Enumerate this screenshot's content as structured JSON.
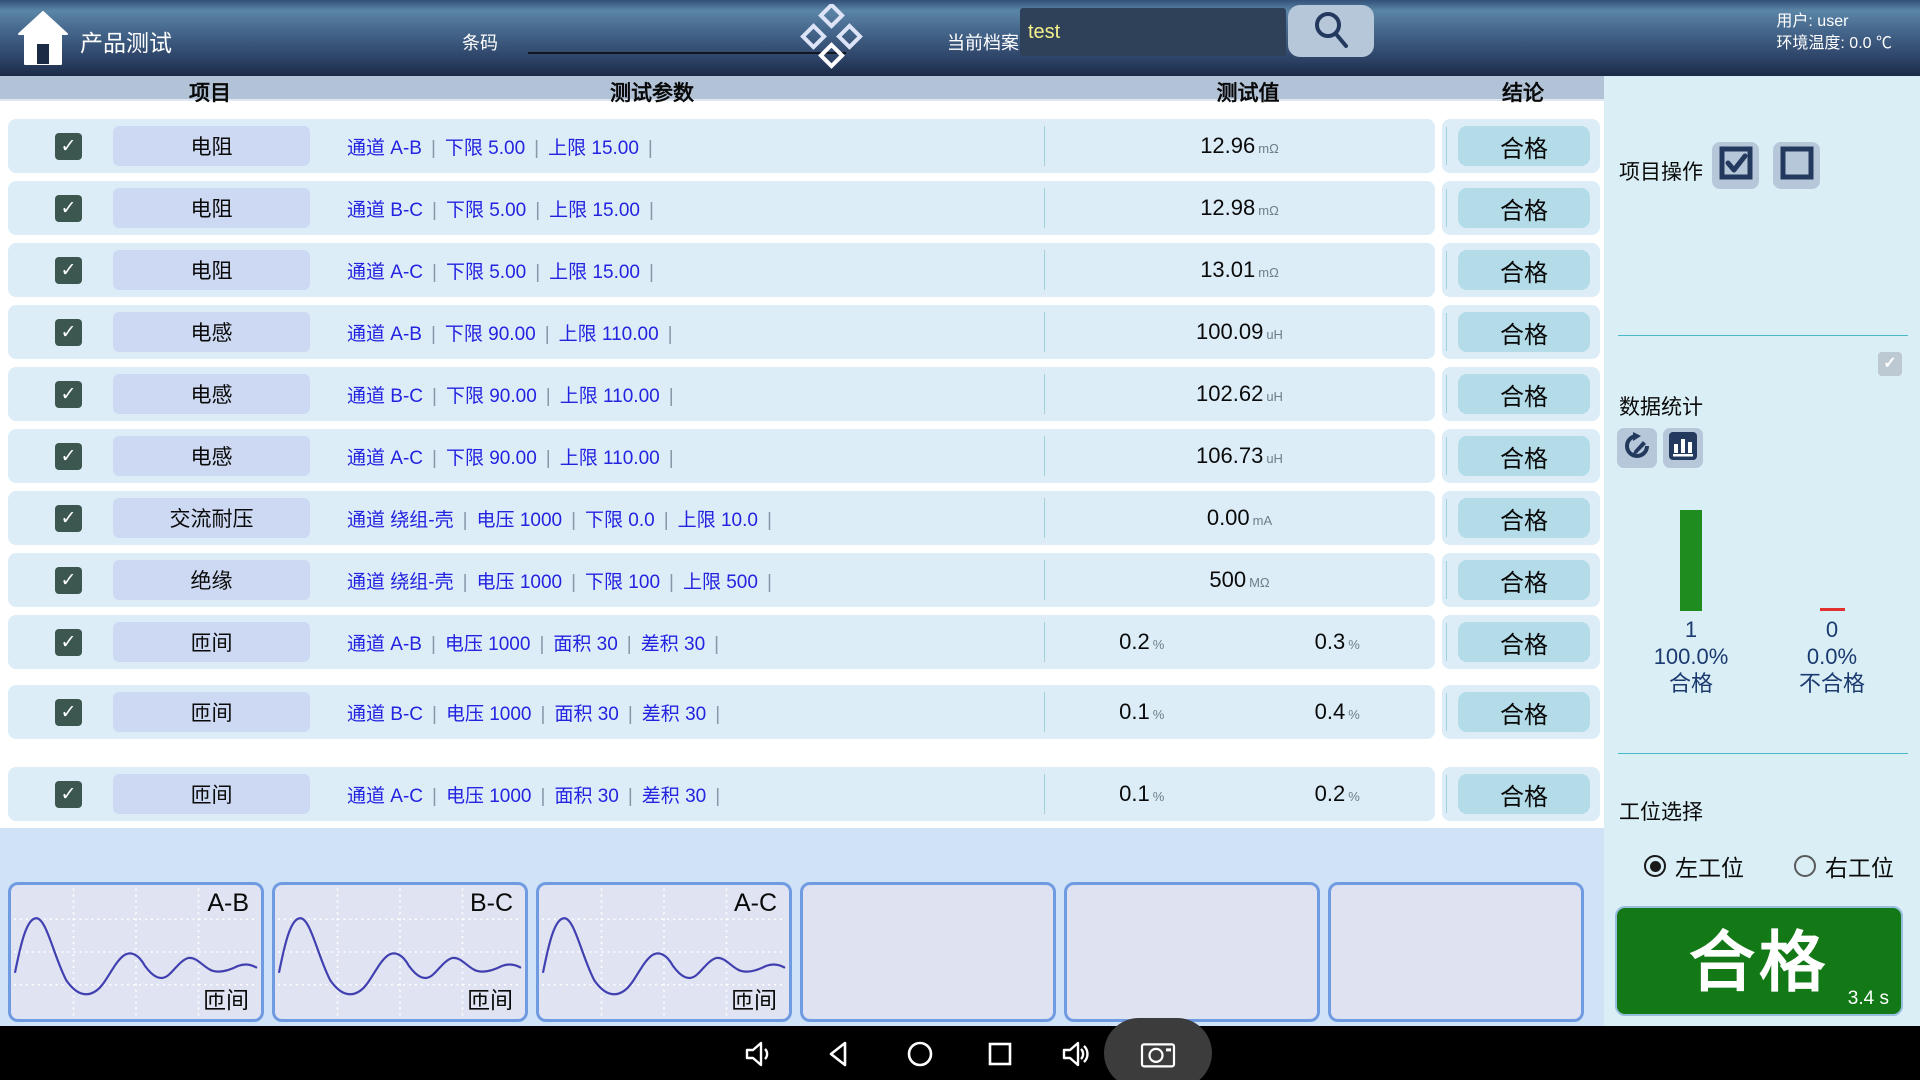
{
  "topbar": {
    "title": "产品测试",
    "barcode_label": "条码",
    "current_file_label": "当前档案",
    "current_file_value": "test",
    "user_line": "用户: user",
    "env_line": "环境温度: 0.0 ℃"
  },
  "table": {
    "headers": [
      "项目",
      "测试参数",
      "测试值",
      "结论"
    ],
    "rows": [
      {
        "checked": true,
        "item": "电阻",
        "params": [
          "通道 A-B",
          "下限 5.00",
          "上限 15.00"
        ],
        "values": [
          {
            "v": "12.96",
            "u": "mΩ"
          }
        ],
        "result": "合格"
      },
      {
        "checked": true,
        "item": "电阻",
        "params": [
          "通道 B-C",
          "下限 5.00",
          "上限 15.00"
        ],
        "values": [
          {
            "v": "12.98",
            "u": "mΩ"
          }
        ],
        "result": "合格"
      },
      {
        "checked": true,
        "item": "电阻",
        "params": [
          "通道 A-C",
          "下限 5.00",
          "上限 15.00"
        ],
        "values": [
          {
            "v": "13.01",
            "u": "mΩ"
          }
        ],
        "result": "合格"
      },
      {
        "checked": true,
        "item": "电感",
        "params": [
          "通道 A-B",
          "下限 90.00",
          "上限 110.00"
        ],
        "values": [
          {
            "v": "100.09",
            "u": "uH"
          }
        ],
        "result": "合格"
      },
      {
        "checked": true,
        "item": "电感",
        "params": [
          "通道 B-C",
          "下限 90.00",
          "上限 110.00"
        ],
        "values": [
          {
            "v": "102.62",
            "u": "uH"
          }
        ],
        "result": "合格"
      },
      {
        "checked": true,
        "item": "电感",
        "params": [
          "通道 A-C",
          "下限 90.00",
          "上限 110.00"
        ],
        "values": [
          {
            "v": "106.73",
            "u": "uH"
          }
        ],
        "result": "合格"
      },
      {
        "checked": true,
        "item": "交流耐压",
        "params": [
          "通道 绕组-壳",
          "电压 1000",
          "下限 0.0",
          "上限 10.0"
        ],
        "values": [
          {
            "v": "0.00",
            "u": "mA"
          }
        ],
        "result": "合格"
      },
      {
        "checked": true,
        "item": "绝缘",
        "params": [
          "通道 绕组-壳",
          "电压 1000",
          "下限 100",
          "上限 500"
        ],
        "values": [
          {
            "v": "500",
            "u": "MΩ"
          }
        ],
        "result": "合格"
      },
      {
        "checked": true,
        "item": "匝间",
        "params": [
          "通道 A-B",
          "电压 1000",
          "面积 30",
          "差积 30"
        ],
        "values": [
          {
            "v": "0.2",
            "u": "%"
          },
          {
            "v": "0.3",
            "u": "%"
          }
        ],
        "result": "合格"
      },
      {
        "checked": true,
        "item": "匝间",
        "params": [
          "通道 B-C",
          "电压 1000",
          "面积 30",
          "差积 30"
        ],
        "values": [
          {
            "v": "0.1",
            "u": "%"
          },
          {
            "v": "0.4",
            "u": "%"
          }
        ],
        "result": "合格"
      },
      {
        "checked": true,
        "item": "匝间",
        "params": [
          "通道 A-C",
          "电压 1000",
          "面积 30",
          "差积 30"
        ],
        "values": [
          {
            "v": "0.1",
            "u": "%"
          },
          {
            "v": "0.2",
            "u": "%"
          }
        ],
        "result": "合格"
      }
    ]
  },
  "sidebar": {
    "item_ops_label": "项目操作",
    "stats_label": "数据统计",
    "stats": {
      "pass_count": "1",
      "pass_pct": "100.0%",
      "pass_label": "合格",
      "fail_count": "0",
      "fail_pct": "0.0%",
      "fail_label": "不合格"
    },
    "station_label": "工位选择",
    "station_options": [
      {
        "label": "左工位",
        "selected": true
      },
      {
        "label": "右工位",
        "selected": false
      }
    ],
    "result_button": {
      "text": "合格",
      "time": "3.4 s"
    }
  },
  "waveforms": {
    "caption": "匝间",
    "panels": [
      {
        "title": "A-B",
        "has_wave": true
      },
      {
        "title": "B-C",
        "has_wave": true
      },
      {
        "title": "A-C",
        "has_wave": true
      },
      {
        "title": "",
        "has_wave": false
      },
      {
        "title": "",
        "has_wave": false
      },
      {
        "title": "",
        "has_wave": false
      }
    ]
  },
  "colors": {
    "pass_green": "#1f8c1f",
    "fail_red": "#e03030",
    "result_button_green": "#127916",
    "param_blue": "#2323e0",
    "row_bg": "#dcedf8",
    "accent_teal": "#49b8c8"
  }
}
